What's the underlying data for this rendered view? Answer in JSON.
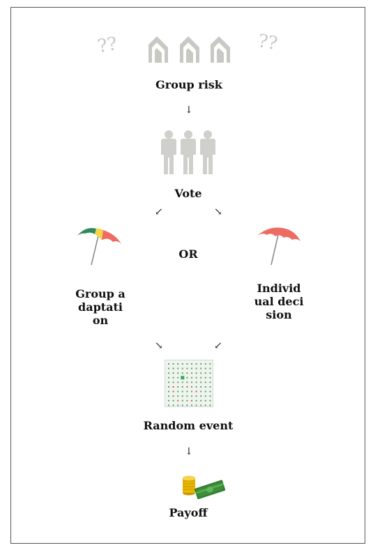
{
  "steps": {
    "group_risk": "Group risk",
    "vote": "Vote",
    "or": "OR",
    "group_adaptation": "Group adaptation",
    "individual_decision": "Individual decision",
    "random_event": "Random event",
    "payoff": "Payoff"
  },
  "arrows": {
    "down": "↓",
    "down_left": "↙",
    "down_right": "↘"
  },
  "icons": {
    "question_left": "??",
    "question_right": "??"
  },
  "colors": {
    "house": "#c9c9c4",
    "person": "#cfcfcb",
    "umbrella_red": "#ee6b62",
    "umbrella_green": "#2e8a5a",
    "umbrella_yellow": "#f5d54a",
    "coin": "#e8b800",
    "cash": "#3b8e3b",
    "grid_green": "#3aa655",
    "grid_red": "#e55050"
  }
}
